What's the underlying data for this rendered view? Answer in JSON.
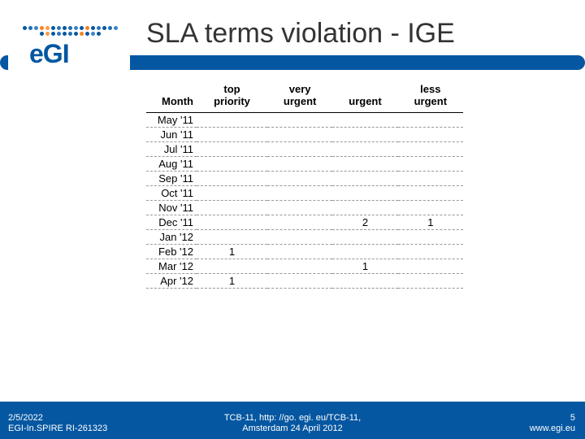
{
  "title": "SLA terms violation - IGE",
  "logo_text": "eGI",
  "halo_colors": [
    "#0557a1",
    "#1f6db4",
    "#3a84c6",
    "#f58220",
    "#ff9a3c",
    "#0557a1",
    "#2c78bd",
    "#0557a1",
    "#1f6db4",
    "#3a84c6",
    "#0557a1",
    "#f58220",
    "#0557a1",
    "#2c78bd",
    "#0557a1",
    "#1f6db4",
    "#3a84c6",
    "#0557a1",
    "#ff9a3c",
    "#0557a1",
    "#2c78bd",
    "#0557a1",
    "#1f6db4",
    "#0557a1",
    "#f58220",
    "#0557a1",
    "#3a84c6",
    "#0557a1"
  ],
  "table": {
    "headers": [
      "Month",
      "top priority",
      "very urgent",
      "urgent",
      "less urgent"
    ],
    "rows": [
      {
        "m": "May '11",
        "v": [
          "",
          "",
          "",
          ""
        ]
      },
      {
        "m": "Jun '11",
        "v": [
          "",
          "",
          "",
          ""
        ]
      },
      {
        "m": "Jul '11",
        "v": [
          "",
          "",
          "",
          ""
        ]
      },
      {
        "m": "Aug '11",
        "v": [
          "",
          "",
          "",
          ""
        ]
      },
      {
        "m": "Sep '11",
        "v": [
          "",
          "",
          "",
          ""
        ]
      },
      {
        "m": "Oct '11",
        "v": [
          "",
          "",
          "",
          ""
        ]
      },
      {
        "m": "Nov '11",
        "v": [
          "",
          "",
          "",
          ""
        ]
      },
      {
        "m": "Dec '11",
        "v": [
          "",
          "",
          "2",
          "1"
        ]
      },
      {
        "m": "Jan '12",
        "v": [
          "",
          "",
          "",
          ""
        ]
      },
      {
        "m": "Feb '12",
        "v": [
          "1",
          "",
          "",
          ""
        ]
      },
      {
        "m": "Mar '12",
        "v": [
          "",
          "",
          "1",
          ""
        ]
      },
      {
        "m": "Apr '12",
        "v": [
          "1",
          "",
          "",
          ""
        ]
      }
    ]
  },
  "footer": {
    "date": "2/5/2022",
    "proj": "EGI-In.SPIRE RI-261323",
    "center1": "TCB-11, http: //go. egi. eu/TCB-11,",
    "center2": "Amsterdam 24 April 2012",
    "page": "5",
    "url": "www.egi.eu"
  },
  "colors": {
    "brand": "#0557a1",
    "accent": "#f58220"
  }
}
